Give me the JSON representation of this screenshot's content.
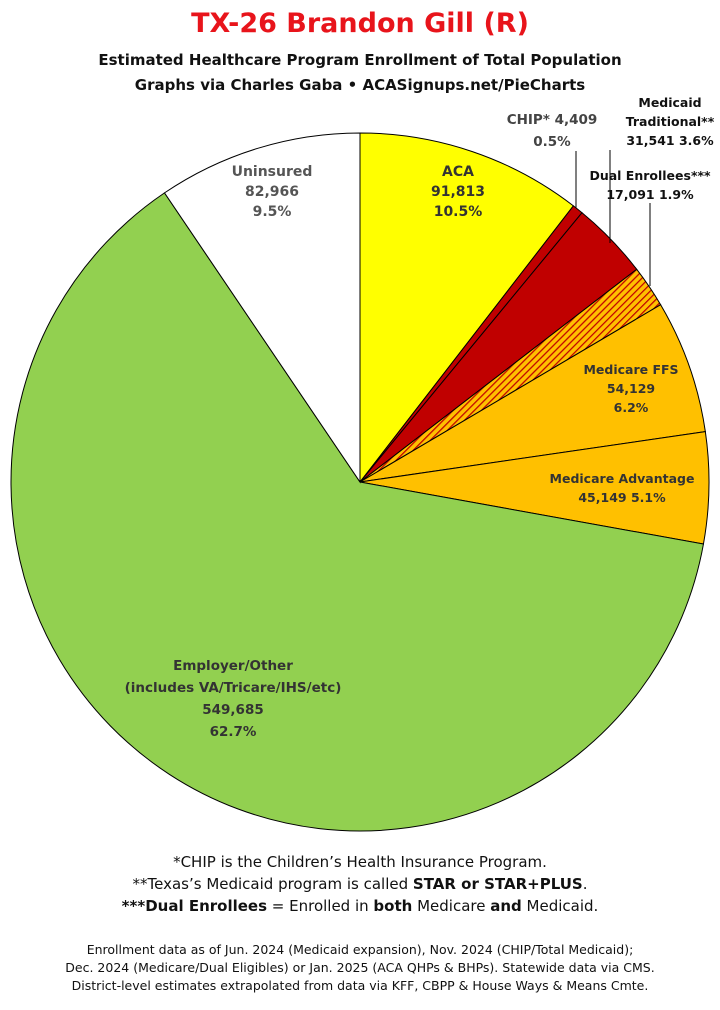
{
  "header": {
    "title": "TX-26 Brandon Gill (R)",
    "subtitle_line1": "Estimated Healthcare Program Enrollment of Total Population",
    "subtitle_line2": "Graphs via Charles Gaba   •   ACASignups.net/PieCharts"
  },
  "chart_data": {
    "type": "pie",
    "start_angle_deg": 0,
    "direction": "clockwise",
    "slices": [
      {
        "name": "ACA",
        "value": 91813,
        "percent": "10.5%",
        "color": "#ffff00",
        "pattern": "solid",
        "label_lines": [
          "ACA",
          "91,813",
          "10.5%"
        ]
      },
      {
        "name": "CHIP*",
        "value": 4409,
        "percent": "0.5%",
        "color": "#c00000",
        "pattern": "solid",
        "label_lines": [
          "CHIP* 4,409",
          "0.5%"
        ]
      },
      {
        "name": "Medicaid Traditional**",
        "value": 31541,
        "percent": "3.6%",
        "color": "#c00000",
        "pattern": "solid",
        "label_lines": [
          "Medicaid",
          "Traditional**",
          "31,541 3.6%"
        ]
      },
      {
        "name": "Dual Enrollees***",
        "value": 17091,
        "percent": "1.9%",
        "color": "#ffc000",
        "pattern": "hatched",
        "hatch_color": "#c00000",
        "label_lines": [
          "Dual Enrollees***",
          "17,091 1.9%"
        ]
      },
      {
        "name": "Medicare FFS",
        "value": 54129,
        "percent": "6.2%",
        "color": "#ffc000",
        "pattern": "solid",
        "label_lines": [
          "Medicare FFS",
          "54,129",
          "6.2%"
        ]
      },
      {
        "name": "Medicare Advantage",
        "value": 45149,
        "percent": "5.1%",
        "color": "#ffc000",
        "pattern": "solid",
        "label_lines": [
          "Medicare Advantage",
          "45,149 5.1%"
        ]
      },
      {
        "name": "Employer/Other",
        "value": 549685,
        "percent": "62.7%",
        "color": "#92d050",
        "pattern": "solid",
        "label_lines": [
          "Employer/Other",
          "(includes VA/Tricare/IHS/etc)",
          "549,685",
          "62.7%"
        ]
      },
      {
        "name": "Uninsured",
        "value": 82966,
        "percent": "9.5%",
        "color": "#ffffff",
        "pattern": "solid",
        "label_lines": [
          "Uninsured",
          "82,966",
          "9.5%"
        ]
      }
    ]
  },
  "notes": {
    "line1": "*CHIP is the Children’s Health Insurance Program.",
    "line2_pre": "**Texas’s Medicaid program is called ",
    "line2_bold": "STAR or STAR+PLUS",
    "line2_post": ".",
    "line3_bold1": "***Dual Enrollees",
    "line3_mid1": " = Enrolled in ",
    "line3_bold2": "both",
    "line3_mid2": " Medicare ",
    "line3_bold3": "and",
    "line3_post": " Medicaid."
  },
  "source": {
    "line1": "Enrollment data as of Jun. 2024 (Medicaid expansion), Nov. 2024 (CHIP/Total Medicaid);",
    "line2": "Dec. 2024 (Medicare/Dual Eligibles) or Jan. 2025 (ACA QHPs & BHPs). Statewide data via CMS.",
    "line3": "District-level estimates extrapolated from data via KFF, CBPP & House Ways & Means Cmte."
  }
}
